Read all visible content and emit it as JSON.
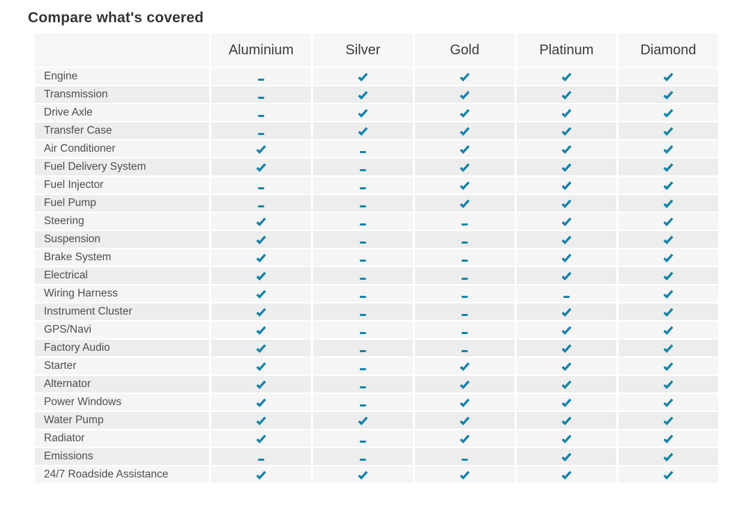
{
  "title": "Compare what's covered",
  "colors": {
    "accent_teal": "#1583a8",
    "row_light": "#f5f5f6",
    "row_dark": "#ededee",
    "header_bg": "#f5f6f6"
  },
  "table": {
    "columns": [
      "Aluminium",
      "Silver",
      "Gold",
      "Platinum",
      "Diamond"
    ],
    "cell_symbols": {
      "check": "covered",
      "dash": "not covered"
    },
    "rows": [
      {
        "label": "Engine",
        "values": [
          "dash",
          "check",
          "check",
          "check",
          "check"
        ]
      },
      {
        "label": "Transmission",
        "values": [
          "dash",
          "check",
          "check",
          "check",
          "check"
        ]
      },
      {
        "label": "Drive Axle",
        "values": [
          "dash",
          "check",
          "check",
          "check",
          "check"
        ]
      },
      {
        "label": "Transfer Case",
        "values": [
          "dash",
          "check",
          "check",
          "check",
          "check"
        ]
      },
      {
        "label": "Air Conditioner",
        "values": [
          "check",
          "dash",
          "check",
          "check",
          "check"
        ]
      },
      {
        "label": "Fuel Delivery System",
        "values": [
          "check",
          "dash",
          "check",
          "check",
          "check"
        ]
      },
      {
        "label": "Fuel Injector",
        "values": [
          "dash",
          "dash",
          "check",
          "check",
          "check"
        ]
      },
      {
        "label": "Fuel Pump",
        "values": [
          "dash",
          "dash",
          "check",
          "check",
          "check"
        ]
      },
      {
        "label": "Steering",
        "values": [
          "check",
          "dash",
          "dash",
          "check",
          "check"
        ]
      },
      {
        "label": "Suspension",
        "values": [
          "check",
          "dash",
          "dash",
          "check",
          "check"
        ]
      },
      {
        "label": "Brake System",
        "values": [
          "check",
          "dash",
          "dash",
          "check",
          "check"
        ]
      },
      {
        "label": "Electrical",
        "values": [
          "check",
          "dash",
          "dash",
          "check",
          "check"
        ]
      },
      {
        "label": "Wiring Harness",
        "values": [
          "check",
          "dash",
          "dash",
          "dash",
          "check"
        ]
      },
      {
        "label": "Instrument Cluster",
        "values": [
          "check",
          "dash",
          "dash",
          "check",
          "check"
        ]
      },
      {
        "label": "GPS/Navi",
        "values": [
          "check",
          "dash",
          "dash",
          "check",
          "check"
        ]
      },
      {
        "label": "Factory Audio",
        "values": [
          "check",
          "dash",
          "dash",
          "check",
          "check"
        ]
      },
      {
        "label": "Starter",
        "values": [
          "check",
          "dash",
          "check",
          "check",
          "check"
        ]
      },
      {
        "label": "Alternator",
        "values": [
          "check",
          "dash",
          "check",
          "check",
          "check"
        ]
      },
      {
        "label": "Power Windows",
        "values": [
          "check",
          "dash",
          "check",
          "check",
          "check"
        ]
      },
      {
        "label": "Water Pump",
        "values": [
          "check",
          "check",
          "check",
          "check",
          "check"
        ]
      },
      {
        "label": "Radiator",
        "values": [
          "check",
          "dash",
          "check",
          "check",
          "check"
        ]
      },
      {
        "label": "Emissions",
        "values": [
          "dash",
          "dash",
          "dash",
          "check",
          "check"
        ]
      },
      {
        "label": "24/7 Roadside Assistance",
        "values": [
          "check",
          "check",
          "check",
          "check",
          "check"
        ]
      }
    ]
  }
}
